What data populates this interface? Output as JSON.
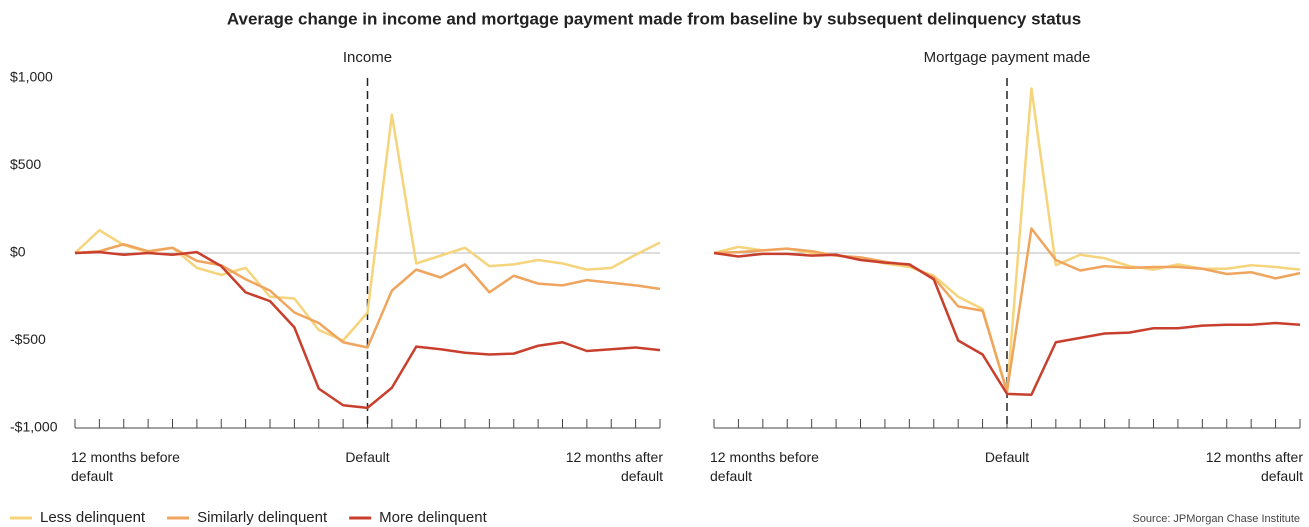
{
  "title": "Average change in income and mortgage payment made from baseline by subsequent delinquency status",
  "source": "Source: JPMorgan Chase Institute",
  "chart_data": [
    {
      "type": "line",
      "title": "Income",
      "x": [
        -12,
        -11,
        -10,
        -9,
        -8,
        -7,
        -6,
        -5,
        -4,
        -3,
        -2,
        -1,
        0,
        1,
        2,
        3,
        4,
        5,
        6,
        7,
        8,
        9,
        10,
        11,
        12
      ],
      "xlim": [
        -12,
        12
      ],
      "xticks": [
        {
          "value": -12,
          "label": "12 months before default"
        },
        {
          "value": 0,
          "label": "Default"
        },
        {
          "value": 12,
          "label": "12 months after default"
        }
      ],
      "ylim": [
        -1000,
        1000
      ],
      "yticks": [
        {
          "value": 1000,
          "label": "$1,000"
        },
        {
          "value": 500,
          "label": "$500"
        },
        {
          "value": 0,
          "label": "$0"
        },
        {
          "value": -500,
          "label": "-$500"
        },
        {
          "value": -1000,
          "label": "-$1,000"
        }
      ],
      "series": [
        {
          "name": "Less delinquent",
          "color": "#f6d47c",
          "values": [
            0,
            130,
            45,
            5,
            30,
            -85,
            -125,
            -85,
            -250,
            -260,
            -440,
            -500,
            -340,
            790,
            -60,
            -15,
            30,
            -75,
            -65,
            -40,
            -60,
            -95,
            -85,
            -10,
            60
          ]
        },
        {
          "name": "Similarly delinquent",
          "color": "#f0a55e",
          "values": [
            0,
            10,
            50,
            10,
            30,
            -45,
            -70,
            -150,
            -215,
            -340,
            -400,
            -510,
            -540,
            -215,
            -95,
            -140,
            -65,
            -225,
            -130,
            -175,
            -185,
            -155,
            -170,
            -185,
            -205
          ]
        },
        {
          "name": "More delinquent",
          "color": "#c8402d",
          "values": [
            0,
            5,
            -10,
            0,
            -10,
            5,
            -75,
            -225,
            -275,
            -425,
            -775,
            -870,
            -885,
            -770,
            -535,
            -550,
            -570,
            -580,
            -575,
            -530,
            -510,
            -560,
            -550,
            -540,
            -555
          ]
        }
      ]
    },
    {
      "type": "line",
      "title": "Mortgage payment made",
      "x": [
        -12,
        -11,
        -10,
        -9,
        -8,
        -7,
        -6,
        -5,
        -4,
        -3,
        -2,
        -1,
        0,
        1,
        2,
        3,
        4,
        5,
        6,
        7,
        8,
        9,
        10,
        11,
        12
      ],
      "xlim": [
        -12,
        12
      ],
      "xticks": [
        {
          "value": -12,
          "label": "12 months before default"
        },
        {
          "value": 0,
          "label": "Default"
        },
        {
          "value": 12,
          "label": "12 months after default"
        }
      ],
      "ylim": [
        -1000,
        1000
      ],
      "series": [
        {
          "name": "Less delinquent",
          "color": "#f6d47c",
          "values": [
            0,
            35,
            15,
            25,
            0,
            -15,
            -30,
            -60,
            -80,
            -130,
            -250,
            -320,
            -800,
            940,
            -70,
            -10,
            -30,
            -75,
            -95,
            -65,
            -90,
            -90,
            -70,
            -80,
            -95
          ]
        },
        {
          "name": "Similarly delinquent",
          "color": "#f0a55e",
          "values": [
            0,
            5,
            15,
            25,
            10,
            -15,
            -25,
            -50,
            -70,
            -140,
            -305,
            -330,
            -790,
            140,
            -40,
            -100,
            -75,
            -85,
            -80,
            -80,
            -90,
            -120,
            -110,
            -145,
            -115
          ]
        },
        {
          "name": "More delinquent",
          "color": "#c8402d",
          "values": [
            0,
            -20,
            -5,
            -5,
            -15,
            -10,
            -40,
            -55,
            -65,
            -150,
            -500,
            -580,
            -805,
            -810,
            -510,
            -485,
            -460,
            -455,
            -430,
            -430,
            -415,
            -410,
            -410,
            -400,
            -410
          ]
        }
      ]
    }
  ]
}
